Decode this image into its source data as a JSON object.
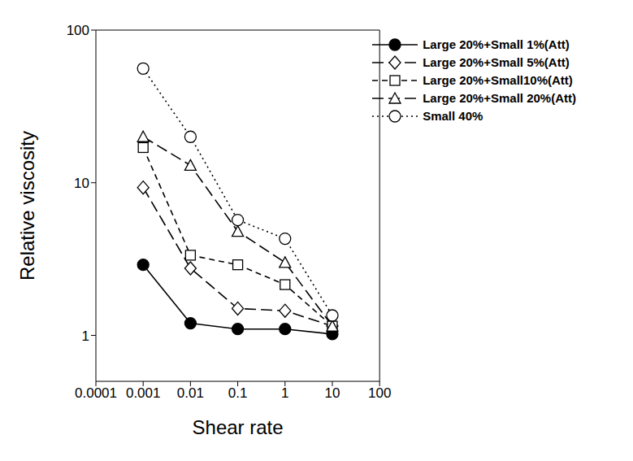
{
  "chart_data": {
    "type": "line",
    "log": true,
    "x_label": "Shear rate",
    "y_label": "Relative viscosity",
    "x": [
      0.001,
      0.01,
      0.1,
      1,
      10
    ],
    "xlim": [
      0.0001,
      100
    ],
    "xticks": [
      0.0001,
      0.001,
      0.01,
      0.1,
      1,
      10,
      100
    ],
    "ylim": [
      0.5,
      100
    ],
    "yticks": [
      1,
      10,
      100
    ],
    "grid": false,
    "legend": "top-right",
    "series": [
      {
        "name": "Large 20%+Small 1%(Att)",
        "color": "#000000",
        "marker": "filled_circle",
        "line_style": "solid",
        "values": [
          2.9,
          1.2,
          1.1,
          1.1,
          1.02
        ]
      },
      {
        "name": "Large 20%+Small 5%(Att)",
        "color": "#000000",
        "marker": "open_diamond",
        "line_style": "longdash",
        "values": [
          9.3,
          2.75,
          1.5,
          1.45,
          1.15
        ]
      },
      {
        "name": "Large 20%+Small10%(Att)",
        "color": "#000000",
        "marker": "open_square",
        "line_style": "dashed",
        "values": [
          17,
          3.35,
          2.9,
          2.15,
          1.15
        ]
      },
      {
        "name": "Large 20%+Small 20%(Att)",
        "color": "#000000",
        "marker": "open_triangle",
        "line_style": "longdash",
        "values": [
          20,
          13,
          4.8,
          3.0,
          1.15
        ]
      },
      {
        "name": " Small 40%",
        "color": "#000000",
        "marker": "open_circle",
        "line_style": "dotted",
        "values": [
          56,
          20,
          5.7,
          4.3,
          1.35
        ]
      }
    ]
  }
}
